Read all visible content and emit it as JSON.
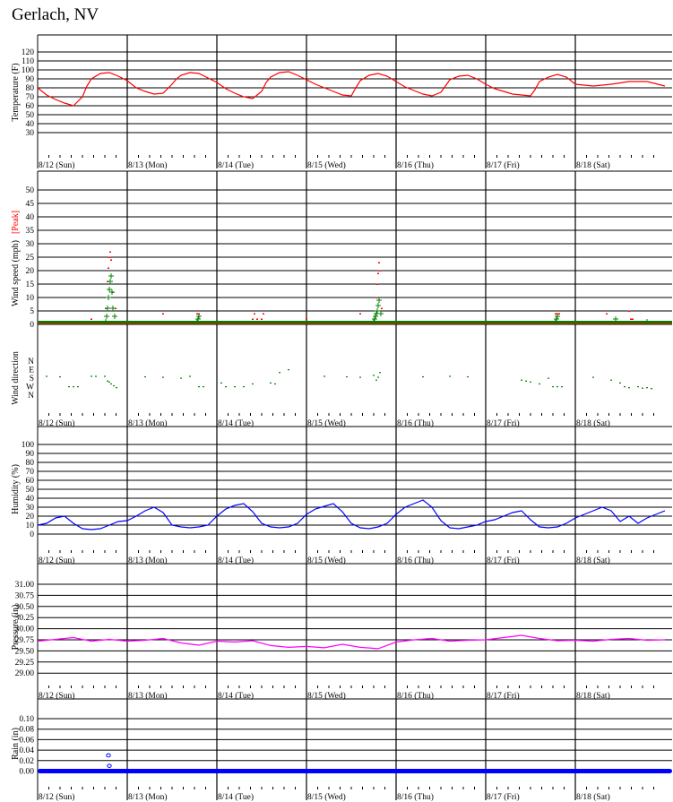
{
  "title": "Gerlach, NV",
  "days": [
    "8/12 (Sun)",
    "8/13 (Mon)",
    "8/14 (Tue)",
    "8/15 (Wed)",
    "8/16 (Thu)",
    "8/17 (Fri)",
    "8/18 (Sat)"
  ],
  "colors": {
    "temperature": "#ff0000",
    "wind_sustained": "#008000",
    "wind_peak": "#ff0000",
    "wind_direction": "#008000",
    "humidity": "#0000ff",
    "pressure": "#ff00ff",
    "rain": "#0000ff"
  },
  "chart_data": [
    {
      "id": "temperature",
      "type": "line",
      "ylabel": "Temperature (F)",
      "ylim": [
        20,
        130
      ],
      "yticks": [
        "120",
        "110",
        "100",
        "90",
        "80",
        "70",
        "60",
        "50",
        "40",
        "30"
      ],
      "x_unit": "day offset from 8/12 00:00",
      "grid": true,
      "series": [
        {
          "x": [
            0,
            0.1,
            0.2,
            0.3,
            0.4,
            0.5,
            0.55,
            0.6,
            0.7,
            0.8,
            0.9,
            1.0,
            1.1,
            1.2,
            1.3,
            1.4,
            1.5,
            1.55,
            1.6,
            1.7,
            1.8,
            1.9,
            2.0,
            2.1,
            2.2,
            2.3,
            2.4,
            2.5,
            2.55,
            2.6,
            2.7,
            2.8,
            2.9,
            3.0,
            3.1,
            3.2,
            3.3,
            3.4,
            3.5,
            3.55,
            3.6,
            3.7,
            3.8,
            3.9,
            4.0,
            4.1,
            4.2,
            4.3,
            4.4,
            4.5,
            4.55,
            4.6,
            4.7,
            4.8,
            4.9,
            5.0,
            5.1,
            5.2,
            5.3,
            5.4,
            5.5,
            5.55,
            5.6,
            5.7,
            5.8,
            5.9,
            6.0,
            6.2,
            6.4,
            6.6,
            6.8,
            7.0
          ],
          "y": [
            80,
            72,
            67,
            63,
            60,
            70,
            82,
            90,
            96,
            97,
            93,
            88,
            80,
            76,
            73,
            74,
            84,
            90,
            94,
            97,
            96,
            91,
            86,
            79,
            74,
            70,
            68,
            76,
            86,
            92,
            97,
            98,
            94,
            89,
            84,
            80,
            76,
            72,
            71,
            80,
            88,
            94,
            96,
            93,
            87,
            81,
            77,
            73,
            71,
            75,
            82,
            89,
            93,
            94,
            90,
            84,
            79,
            76,
            73,
            72,
            71,
            78,
            87,
            92,
            95,
            92,
            84,
            82,
            84,
            87,
            87,
            82
          ]
        }
      ]
    },
    {
      "id": "wind-speed",
      "type": "scatter",
      "ylabel": "Wind speed (mph)",
      "ylabel_peak": "[Peak]",
      "ylim": [
        -5,
        55
      ],
      "yticks": [
        "50",
        "45",
        "40",
        "35",
        "30",
        "25",
        "20",
        "15",
        "10",
        "5",
        "0"
      ],
      "x_unit": "day offset from 8/12 00:00",
      "grid": true,
      "series": [
        {
          "name": "sustained",
          "x": [
            0.76,
            0.77,
            0.78,
            0.79,
            0.8,
            0.81,
            0.82,
            0.83,
            0.84,
            0.86,
            1.78,
            1.79,
            1.8,
            3.75,
            3.76,
            3.77,
            3.78,
            3.79,
            3.8,
            3.81,
            3.83,
            5.78,
            5.79,
            5.8,
            6.45,
            6.8
          ],
          "y": [
            1,
            3,
            6,
            10,
            13,
            16,
            18,
            12,
            6,
            3,
            1,
            2,
            3,
            1,
            2,
            3,
            4,
            5,
            7,
            9,
            4,
            1,
            2,
            3,
            2,
            1
          ]
        },
        {
          "name": "peak",
          "x": [
            0.6,
            0.76,
            0.78,
            0.79,
            0.8,
            0.81,
            0.82,
            0.84,
            0.87,
            1.4,
            1.78,
            1.8,
            2.4,
            2.42,
            2.45,
            2.5,
            2.52,
            3.0,
            3.6,
            3.78,
            3.79,
            3.8,
            3.81,
            3.82,
            3.84,
            5.78,
            5.8,
            5.82,
            6.35,
            6.6,
            6.62,
            6.64
          ],
          "y": [
            2,
            6,
            16,
            21,
            25,
            27,
            24,
            12,
            6,
            4,
            4,
            4,
            2,
            4,
            2,
            2,
            4,
            2,
            4,
            10,
            15,
            19,
            23,
            20,
            6,
            4,
            4,
            4,
            4,
            5,
            2,
            2
          ]
        }
      ]
    },
    {
      "id": "wind-direction",
      "type": "scatter",
      "ylabel": "Wind direction",
      "yticks": [
        "N",
        "E",
        "S",
        "W",
        "N"
      ],
      "ylim": [
        0,
        360
      ],
      "x_unit": "day offset from 8/12 00:00",
      "grid": false,
      "series": [
        {
          "x": [
            0.1,
            0.25,
            0.35,
            0.4,
            0.45,
            0.6,
            0.65,
            0.75,
            0.78,
            0.8,
            0.82,
            0.85,
            0.88,
            1.2,
            1.4,
            1.6,
            1.7,
            1.8,
            1.85,
            2.05,
            2.1,
            2.2,
            2.3,
            2.4,
            2.6,
            2.65,
            2.7,
            2.8,
            3.2,
            3.45,
            3.6,
            3.75,
            3.78,
            3.8,
            3.82,
            4.3,
            4.6,
            4.8,
            5.4,
            5.45,
            5.5,
            5.6,
            5.7,
            5.75,
            5.8,
            5.85,
            6.2,
            6.4,
            6.5,
            6.55,
            6.6,
            6.7,
            6.75,
            6.8,
            6.85
          ],
          "y": [
            160,
            165,
            270,
            270,
            270,
            160,
            160,
            160,
            210,
            220,
            240,
            260,
            280,
            165,
            170,
            180,
            160,
            270,
            270,
            230,
            270,
            270,
            270,
            240,
            230,
            240,
            120,
            90,
            160,
            165,
            170,
            150,
            200,
            170,
            120,
            165,
            160,
            165,
            200,
            210,
            220,
            240,
            180,
            270,
            270,
            270,
            170,
            200,
            230,
            270,
            280,
            270,
            285,
            280,
            290
          ]
        }
      ]
    },
    {
      "id": "humidity",
      "type": "line",
      "ylabel": "Humidity (%)",
      "ylim": [
        -10,
        110
      ],
      "yticks": [
        "100",
        "90",
        "80",
        "70",
        "60",
        "50",
        "40",
        "30",
        "20",
        "10",
        "0"
      ],
      "x_unit": "day offset from 8/12 00:00",
      "grid": true,
      "series": [
        {
          "x": [
            0,
            0.1,
            0.2,
            0.3,
            0.4,
            0.5,
            0.6,
            0.7,
            0.8,
            0.9,
            1.0,
            1.1,
            1.2,
            1.3,
            1.4,
            1.5,
            1.6,
            1.7,
            1.8,
            1.9,
            2.0,
            2.1,
            2.2,
            2.3,
            2.4,
            2.5,
            2.6,
            2.7,
            2.8,
            2.9,
            3.0,
            3.1,
            3.2,
            3.3,
            3.4,
            3.5,
            3.6,
            3.7,
            3.8,
            3.9,
            4.0,
            4.1,
            4.2,
            4.3,
            4.4,
            4.5,
            4.6,
            4.7,
            4.8,
            4.9,
            5.0,
            5.1,
            5.2,
            5.3,
            5.4,
            5.5,
            5.6,
            5.7,
            5.8,
            5.9,
            6.0,
            6.1,
            6.2,
            6.3,
            6.4,
            6.5,
            6.6,
            6.7,
            6.8,
            6.9,
            7.0
          ],
          "y": [
            10,
            12,
            18,
            20,
            12,
            6,
            5,
            6,
            10,
            14,
            15,
            20,
            26,
            30,
            24,
            10,
            8,
            7,
            8,
            10,
            20,
            28,
            32,
            34,
            25,
            12,
            8,
            7,
            8,
            12,
            22,
            28,
            31,
            34,
            25,
            12,
            7,
            6,
            8,
            12,
            22,
            30,
            34,
            38,
            30,
            15,
            7,
            6,
            8,
            10,
            14,
            16,
            20,
            24,
            26,
            16,
            8,
            7,
            8,
            12,
            18,
            22,
            26,
            30,
            26,
            14,
            20,
            12,
            18,
            22,
            26
          ]
        }
      ]
    },
    {
      "id": "pressure",
      "type": "line",
      "ylabel": "Pressure (in)",
      "ylim": [
        28.75,
        31.25
      ],
      "yticks": [
        "31.00",
        "30.75",
        "30.50",
        "30.25",
        "30.00",
        "29.75",
        "29.50",
        "29.25",
        "29.00"
      ],
      "x_unit": "day offset from 8/12 00:00",
      "grid": true,
      "series": [
        {
          "x": [
            0,
            0.2,
            0.4,
            0.6,
            0.8,
            1.0,
            1.2,
            1.4,
            1.6,
            1.8,
            2.0,
            2.2,
            2.4,
            2.6,
            2.8,
            3.0,
            3.2,
            3.4,
            3.6,
            3.8,
            4.0,
            4.2,
            4.4,
            4.6,
            4.8,
            5.0,
            5.2,
            5.4,
            5.6,
            5.8,
            6.0,
            6.2,
            6.4,
            6.6,
            6.8,
            7.0
          ],
          "y": [
            29.72,
            29.76,
            29.8,
            29.72,
            29.76,
            29.72,
            29.74,
            29.78,
            29.68,
            29.63,
            29.72,
            29.7,
            29.73,
            29.62,
            29.58,
            29.6,
            29.57,
            29.65,
            29.58,
            29.55,
            29.7,
            29.75,
            29.78,
            29.72,
            29.74,
            29.75,
            29.8,
            29.85,
            29.78,
            29.73,
            29.74,
            29.72,
            29.76,
            29.78,
            29.74,
            29.75
          ]
        }
      ]
    },
    {
      "id": "rain",
      "type": "scatter",
      "ylabel": "Rain (in)",
      "ylim": [
        -0.005,
        0.11
      ],
      "yticks": [
        "0.10",
        "0.08",
        "0.06",
        "0.04",
        "0.02",
        "0.00"
      ],
      "x_unit": "day offset from 8/12 00:00",
      "grid": true,
      "baseline": 0.0,
      "series": [
        {
          "x": [
            0.79,
            0.8
          ],
          "y": [
            0.03,
            0.01
          ]
        }
      ]
    }
  ]
}
